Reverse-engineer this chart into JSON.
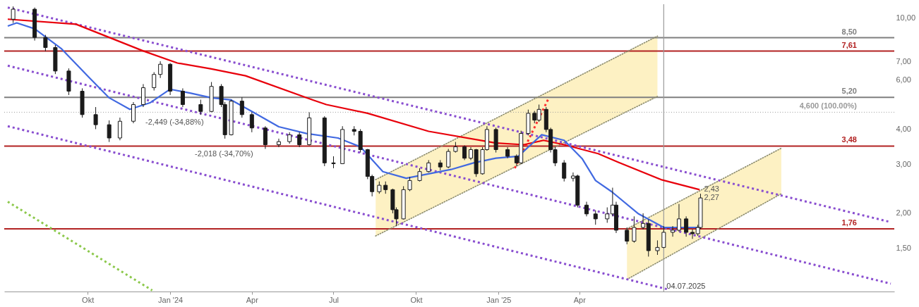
{
  "chart_data": {
    "type": "candlestick",
    "color": "#1a1a1a",
    "x": [
      "2023-07-10",
      "2023-08-03",
      "2023-08-15",
      "2023-08-26",
      "2023-09-10",
      "2023-09-25",
      "2023-10-10",
      "2023-10-25",
      "2023-11-06",
      "2023-11-21",
      "2023-12-02",
      "2023-12-14",
      "2023-12-21",
      "2024-01-01",
      "2024-01-15",
      "2024-02-04",
      "2024-02-16",
      "2024-02-27",
      "2024-03-02",
      "2024-03-09",
      "2024-03-21",
      "2024-04-01",
      "2024-04-16",
      "2024-05-01",
      "2024-05-13",
      "2024-05-24",
      "2024-06-04",
      "2024-06-21",
      "2024-07-01",
      "2024-07-11",
      "2024-07-24",
      "2024-07-31",
      "2024-08-08",
      "2024-08-13",
      "2024-08-21",
      "2024-08-28",
      "2024-09-05",
      "2024-09-09",
      "2024-09-17",
      "2024-09-24",
      "2024-10-05",
      "2024-10-15",
      "2024-10-28",
      "2024-11-06",
      "2024-11-14",
      "2024-11-24",
      "2024-12-01",
      "2024-12-07",
      "2024-12-14",
      "2024-12-19",
      "2024-12-29",
      "2025-01-11",
      "2025-01-21",
      "2025-01-26",
      "2025-02-03",
      "2025-02-10",
      "2025-02-15",
      "2025-02-23",
      "2025-02-28",
      "2025-03-05",
      "2025-03-15",
      "2025-03-25",
      "2025-03-30",
      "2025-04-09",
      "2025-04-19",
      "2025-05-02",
      "2025-05-08",
      "2025-05-12",
      "2025-05-24",
      "2025-06-01",
      "2025-06-11",
      "2025-06-17",
      "2025-06-27",
      "2025-07-04",
      "2025-07-14",
      "2025-07-21",
      "2025-07-29",
      "2025-08-05",
      "2025-08-11",
      "2025-08-14"
    ],
    "ohlc": [
      [
        9.9,
        11.0,
        9.6,
        10.75
      ],
      [
        10.75,
        10.9,
        8.3,
        8.52
      ],
      [
        8.52,
        8.7,
        7.6,
        7.84
      ],
      [
        7.84,
        8.0,
        6.3,
        6.46
      ],
      [
        6.46,
        6.6,
        5.3,
        5.47
      ],
      [
        5.47,
        5.6,
        4.4,
        4.51
      ],
      [
        4.51,
        4.8,
        4.0,
        4.15
      ],
      [
        4.15,
        4.3,
        3.6,
        3.72
      ],
      [
        3.72,
        4.4,
        3.65,
        4.27
      ],
      [
        4.27,
        5.0,
        4.2,
        4.9
      ],
      [
        4.9,
        5.8,
        4.8,
        5.63
      ],
      [
        5.63,
        6.4,
        5.5,
        6.28
      ],
      [
        6.28,
        7.0,
        6.1,
        6.83
      ],
      [
        6.83,
        6.9,
        5.3,
        5.47
      ],
      [
        5.47,
        5.6,
        4.8,
        4.9
      ],
      [
        4.9,
        5.1,
        4.5,
        4.63
      ],
      [
        4.63,
        5.9,
        4.6,
        5.69
      ],
      [
        5.69,
        5.8,
        4.8,
        4.9
      ],
      [
        4.9,
        5.0,
        3.7,
        3.82
      ],
      [
        3.82,
        5.1,
        3.8,
        5.04
      ],
      [
        5.04,
        5.2,
        4.4,
        4.51
      ],
      [
        4.51,
        4.6,
        3.9,
        4.04
      ],
      [
        4.04,
        4.1,
        3.4,
        3.52
      ],
      [
        3.52,
        3.7,
        3.45,
        3.61
      ],
      [
        3.61,
        3.9,
        3.55,
        3.82
      ],
      [
        3.82,
        3.9,
        3.45,
        3.52
      ],
      [
        3.52,
        4.6,
        3.5,
        4.39
      ],
      [
        4.39,
        4.45,
        2.95,
        3.03
      ],
      [
        3.03,
        3.2,
        2.9,
        3.01
      ],
      [
        3.01,
        4.1,
        3.0,
        3.99
      ],
      [
        3.99,
        4.1,
        3.8,
        3.93
      ],
      [
        3.93,
        4.0,
        3.3,
        3.38
      ],
      [
        3.38,
        3.4,
        2.65,
        2.71
      ],
      [
        2.71,
        2.75,
        2.3,
        2.39
      ],
      [
        2.39,
        2.6,
        2.35,
        2.52
      ],
      [
        2.52,
        2.6,
        2.35,
        2.43
      ],
      [
        2.43,
        2.45,
        2.0,
        2.06
      ],
      [
        2.06,
        2.1,
        1.8,
        1.91
      ],
      [
        1.91,
        2.5,
        1.9,
        2.43
      ],
      [
        2.43,
        2.7,
        2.4,
        2.62
      ],
      [
        2.62,
        2.9,
        2.6,
        2.82
      ],
      [
        2.82,
        3.1,
        2.8,
        3.03
      ],
      [
        3.03,
        3.1,
        2.85,
        2.93
      ],
      [
        2.93,
        3.4,
        2.9,
        3.33
      ],
      [
        3.33,
        3.6,
        3.3,
        3.46
      ],
      [
        3.46,
        3.5,
        3.1,
        3.15
      ],
      [
        3.15,
        3.45,
        3.1,
        3.38
      ],
      [
        3.38,
        3.4,
        2.7,
        2.77
      ],
      [
        2.77,
        3.45,
        2.75,
        3.38
      ],
      [
        3.38,
        4.1,
        3.35,
        3.99
      ],
      [
        3.99,
        4.05,
        3.3,
        3.38
      ],
      [
        3.38,
        3.45,
        3.15,
        3.2
      ],
      [
        3.2,
        3.25,
        2.95,
        3.03
      ],
      [
        3.03,
        3.95,
        3.0,
        3.86
      ],
      [
        3.86,
        4.7,
        3.8,
        4.56
      ],
      [
        4.56,
        4.65,
        4.2,
        4.31
      ],
      [
        4.31,
        4.9,
        4.25,
        4.71
      ],
      [
        4.71,
        4.8,
        3.9,
        3.99
      ],
      [
        3.99,
        4.05,
        3.3,
        3.38
      ],
      [
        3.38,
        3.45,
        2.95,
        3.03
      ],
      [
        3.03,
        3.1,
        2.6,
        2.67
      ],
      [
        2.67,
        2.8,
        2.6,
        2.72
      ],
      [
        2.72,
        2.75,
        2.1,
        2.14
      ],
      [
        2.14,
        2.2,
        1.95,
        1.99
      ],
      [
        1.99,
        2.05,
        1.82,
        1.91
      ],
      [
        1.91,
        2.1,
        1.85,
        1.99
      ],
      [
        1.99,
        2.47,
        1.95,
        2.14
      ],
      [
        2.14,
        2.2,
        1.7,
        1.74
      ],
      [
        1.74,
        1.78,
        1.55,
        1.59
      ],
      [
        1.59,
        1.95,
        1.57,
        1.78
      ],
      [
        1.78,
        2.0,
        1.75,
        1.84
      ],
      [
        1.84,
        1.9,
        1.4,
        1.47
      ],
      [
        1.47,
        1.6,
        1.42,
        1.51
      ],
      [
        1.51,
        1.8,
        1.5,
        1.71
      ],
      [
        1.71,
        1.8,
        1.65,
        1.74
      ],
      [
        1.74,
        2.16,
        1.72,
        1.91
      ],
      [
        1.91,
        1.95,
        1.65,
        1.71
      ],
      [
        1.71,
        1.75,
        1.62,
        1.69
      ],
      [
        1.69,
        1.82,
        1.66,
        1.78
      ],
      [
        1.78,
        2.35,
        1.76,
        2.27
      ]
    ],
    "series": [
      {
        "type": "line",
        "line_style": "dotted",
        "color": "#8c8c6e",
        "x": [
          "2024-08-17",
          "2025-06-27"
        ],
        "values": [
          1.66,
          5.24
        ],
        "lower": [
          1.66,
          5.24
        ],
        "upper": [
          2.64,
          8.61
        ]
      },
      {
        "type": "line",
        "line_style": "dotted",
        "color": "#8c8c6e",
        "x": [
          "2024-08-17",
          "2025-06-27"
        ],
        "values": [
          2.64,
          8.61
        ]
      },
      {
        "type": "line",
        "line_style": "dotted",
        "color": "#8c8c6e",
        "x": [
          "2025-05-24",
          "2025-11-12"
        ],
        "values": [
          1.16,
          2.35
        ],
        "lower": [
          1.16,
          2.35
        ],
        "upper": [
          1.76,
          3.42
        ]
      },
      {
        "type": "line",
        "line_style": "dotted",
        "color": "#8c8c6e",
        "x": [
          "2025-05-24",
          "2025-11-12"
        ],
        "values": [
          1.76,
          3.42
        ]
      },
      {
        "type": "line",
        "line_style": "dashed",
        "color": "#8a4fd0",
        "x": [
          "2023-07-04",
          "2026-03-14"
        ],
        "values": [
          10.9,
          1.86
        ]
      },
      {
        "type": "line",
        "line_style": "dashed",
        "color": "#8a4fd0",
        "x": [
          "2023-07-04",
          "2026-03-14"
        ],
        "values": [
          6.75,
          1.12
        ]
      },
      {
        "type": "line",
        "line_style": "dashed",
        "color": "#8a4fd0",
        "x": [
          "2023-07-04",
          "2025-07-08"
        ],
        "values": [
          4.1,
          1.07
        ]
      },
      {
        "type": "line",
        "line_style": "dashed",
        "color": "#8cc84b",
        "x": [
          "2023-07-04",
          "2023-12-12"
        ],
        "values": [
          2.2,
          1.06
        ]
      },
      {
        "type": "line",
        "line_style": "dashed",
        "color": "#ff3030",
        "x": [
          "2025-01-19",
          "2025-02-26"
        ],
        "values": [
          2.9,
          5.18
        ]
      },
      {
        "type": "line",
        "line_style": "solid",
        "color": "#e8000b",
        "x": [
          "2023-07-04",
          "2023-09-18",
          "2023-10-25",
          "2023-12-02",
          "2024-01-09",
          "2024-02-16",
          "2024-03-25",
          "2024-06-08",
          "2024-06-23",
          "2024-08-08",
          "2024-10-15",
          "2024-12-29",
          "2025-01-29",
          "2025-02-20",
          "2025-03-15",
          "2025-04-22",
          "2025-05-14",
          "2025-07-01",
          "2025-08-13"
        ],
        "values": [
          9.9,
          9.5,
          8.52,
          7.62,
          6.9,
          6.57,
          6.21,
          5.09,
          4.9,
          4.56,
          3.93,
          3.57,
          3.52,
          3.65,
          3.52,
          3.27,
          3.05,
          2.64,
          2.43
        ]
      },
      {
        "type": "line",
        "line_style": "solid",
        "color": "#4169e1",
        "x": [
          "2023-07-04",
          "2023-07-14",
          "2023-08-03",
          "2023-09-02",
          "2023-10-03",
          "2023-10-25",
          "2023-11-17",
          "2023-12-10",
          "2024-01-01",
          "2024-01-24",
          "2024-02-16",
          "2024-03-09",
          "2024-04-01",
          "2024-05-01",
          "2024-06-01",
          "2024-07-06",
          "2024-07-31",
          "2024-08-25",
          "2024-09-20",
          "2024-10-15",
          "2024-11-09",
          "2024-12-04",
          "2024-12-29",
          "2025-01-23",
          "2025-02-18",
          "2025-03-15",
          "2025-04-04",
          "2025-04-19",
          "2025-05-07",
          "2025-06-06",
          "2025-07-04",
          "2025-08-13"
        ],
        "values": [
          9.36,
          9.6,
          9.15,
          7.75,
          6.11,
          5.18,
          4.71,
          4.98,
          5.56,
          5.38,
          5.18,
          5.09,
          4.63,
          4.08,
          3.86,
          3.72,
          3.46,
          2.82,
          2.67,
          2.77,
          2.87,
          3.03,
          3.15,
          3.2,
          3.82,
          3.65,
          3.14,
          2.62,
          2.39,
          1.99,
          1.78,
          1.78
        ]
      }
    ],
    "xlim": [
      "2023-07-04",
      "2026-03-14"
    ],
    "xticks": [
      {
        "value": "2023-10-01",
        "label": "Okt"
      },
      {
        "value": "2024-01-01",
        "label": "Jan '24"
      },
      {
        "value": "2024-04-01",
        "label": "Apr"
      },
      {
        "value": "2024-07-01",
        "label": "Jul"
      },
      {
        "value": "2024-10-01",
        "label": "Okt"
      },
      {
        "value": "2025-01-01",
        "label": "Jan '25"
      },
      {
        "value": "2025-04-01",
        "label": "Apr"
      }
    ],
    "ylim": [
      1.05,
      11.2
    ],
    "log": "y",
    "yticks": [
      {
        "value": 1.5,
        "label": "1,50"
      },
      {
        "value": 2,
        "label": "2,00"
      },
      {
        "value": 3,
        "label": "3,00"
      },
      {
        "value": 4,
        "label": "4,00"
      },
      {
        "value": 6,
        "label": "6,00"
      },
      {
        "value": 7,
        "label": "7,00"
      },
      {
        "value": 10,
        "label": "10,00"
      }
    ],
    "ref_lines": [
      {
        "axis": "y",
        "value": 8.5,
        "label": "8,50",
        "color": "#7f7f7f",
        "line_style": "solid"
      },
      {
        "axis": "y",
        "value": 7.61,
        "label": "7,61",
        "color": "#b22222",
        "line_style": "solid"
      },
      {
        "axis": "y",
        "value": 5.2,
        "label": "5,20",
        "color": "#7f7f7f",
        "line_style": "solid"
      },
      {
        "axis": "y",
        "value": 4.6,
        "label": "4,600 (100.00%)",
        "color": "#9a9a9a",
        "line_style": "dotted"
      },
      {
        "axis": "y",
        "value": 3.48,
        "label": "3,48",
        "color": "#b22222",
        "line_style": "solid"
      },
      {
        "axis": "y",
        "value": 1.76,
        "label": "1,76",
        "color": "#b22222",
        "line_style": "solid"
      },
      {
        "axis": "x",
        "value": "2025-07-04",
        "label": "04.07.2025",
        "color": "#9a9a9a",
        "line_style": "solid"
      }
    ],
    "annotations": [
      "-2,449 (-34,88%)",
      "-2,018 (-34,70%)",
      {
        "text": "2,43",
        "x": "2025-08-14",
        "y": 2.43
      },
      {
        "text": "2,27",
        "x": "2025-08-14",
        "y": 2.27
      }
    ]
  }
}
